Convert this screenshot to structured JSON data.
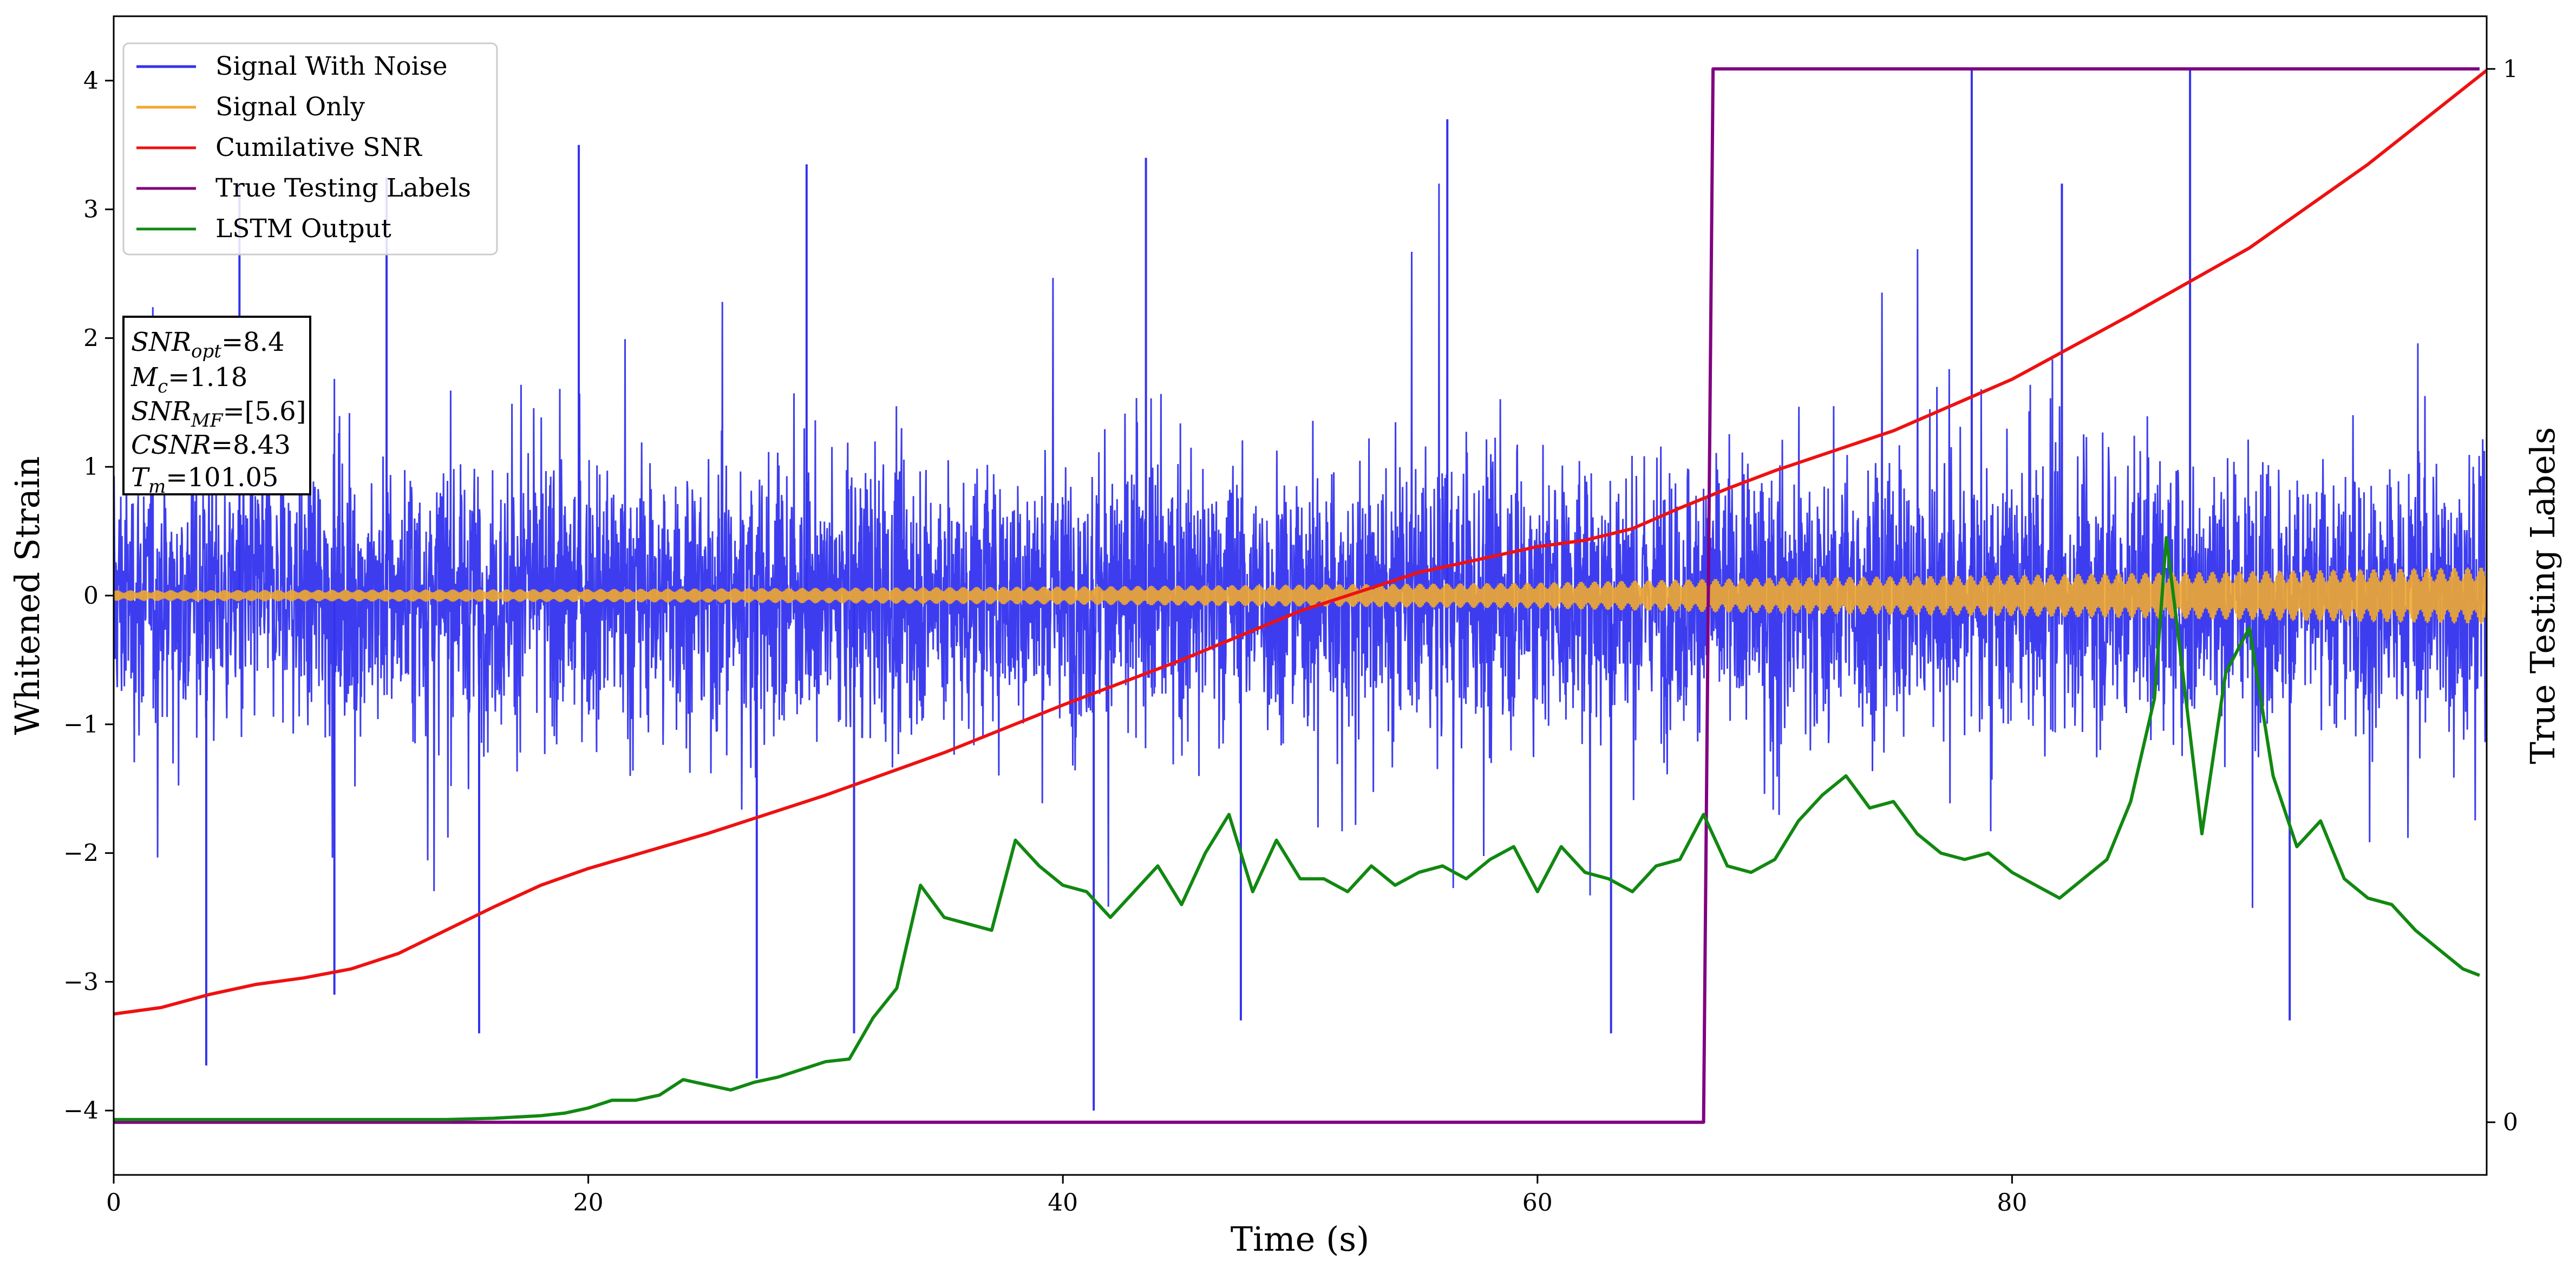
{
  "chart_data": {
    "type": "line",
    "xlabel": "Time (s)",
    "ylabel": "Whitened Strain",
    "y2label": "True Testing Labels",
    "xlim": [
      0,
      100
    ],
    "ylim": [
      -4.5,
      4.5
    ],
    "y2lim": [
      -0.05,
      1.05
    ],
    "x_ticks": [
      0,
      20,
      40,
      60,
      80
    ],
    "x_tick_labels": [
      "0",
      "20",
      "40",
      "60",
      "80"
    ],
    "y_ticks": [
      -4,
      -3,
      -2,
      -1,
      0,
      1,
      2,
      3,
      4
    ],
    "y_tick_labels": [
      "−4",
      "−3",
      "−2",
      "−1",
      "0",
      "1",
      "2",
      "3",
      "4"
    ],
    "y2_ticks": [
      0,
      1
    ],
    "y2_tick_labels": [
      "0",
      "1"
    ],
    "grid": false,
    "legend_position": "upper-left",
    "series": [
      {
        "name": "Signal With Noise",
        "color": "#3333ee",
        "axis": "left",
        "description": "dense noise, typical band about -1.5 to 1.5 with spikes to about ±3.5",
        "spike_times": [
          3.9,
          5.3,
          9.3,
          11.5,
          15.4,
          19.6,
          27.1,
          29.2,
          31.2,
          41.3,
          43.5,
          47.5,
          56.2,
          63.1,
          78.3,
          82.1,
          87.5,
          91.7
        ],
        "spike_values": [
          -3.65,
          3.2,
          -3.1,
          3.25,
          -3.4,
          3.5,
          -3.75,
          3.35,
          -3.4,
          -4.0,
          3.4,
          -3.3,
          3.7,
          -3.4,
          4.1,
          3.2,
          4.1,
          -3.3
        ]
      },
      {
        "name": "Signal Only",
        "color": "#f0a830",
        "axis": "left",
        "description": "oscillating chirp, amplitude about 0.05 growing to about 0.2",
        "amplitude_x": [
          0,
          20,
          40,
          60,
          65,
          70,
          80,
          90,
          100
        ],
        "amplitude_y": [
          0.04,
          0.05,
          0.07,
          0.1,
          0.12,
          0.14,
          0.16,
          0.19,
          0.22
        ]
      },
      {
        "name": "Cumilative SNR",
        "color": "#ee1111",
        "axis": "left",
        "x": [
          0,
          2,
          4,
          6,
          8,
          10,
          12,
          14,
          16,
          18,
          20,
          25,
          30,
          35,
          40,
          45,
          50,
          55,
          60,
          62,
          64,
          66,
          68,
          70,
          75,
          80,
          85,
          90,
          95,
          100
        ],
        "y": [
          -3.25,
          -3.2,
          -3.1,
          -3.02,
          -2.97,
          -2.9,
          -2.78,
          -2.6,
          -2.42,
          -2.25,
          -2.12,
          -1.85,
          -1.55,
          -1.22,
          -0.85,
          -0.5,
          -0.12,
          0.18,
          0.38,
          0.43,
          0.52,
          0.68,
          0.83,
          0.97,
          1.28,
          1.68,
          2.18,
          2.7,
          3.35,
          4.08
        ]
      },
      {
        "name": "True Testing Labels",
        "color": "#800080",
        "axis": "right",
        "x": [
          0,
          67,
          67.4,
          99.7
        ],
        "y": [
          0,
          0,
          1,
          1
        ]
      },
      {
        "name": "LSTM Output",
        "color": "#118811",
        "axis": "left",
        "x": [
          0,
          14,
          16,
          18,
          19,
          20,
          21,
          22,
          23,
          24,
          25,
          26,
          27,
          28,
          29,
          30,
          31,
          32,
          33,
          34,
          35,
          36,
          37,
          38,
          39,
          40,
          41,
          42,
          43,
          44,
          45,
          46,
          47,
          48,
          49,
          50,
          51,
          52,
          53,
          54,
          55,
          56,
          57,
          58,
          59,
          60,
          61,
          62,
          63,
          64,
          65,
          66,
          67,
          68,
          69,
          70,
          71,
          72,
          73,
          74,
          75,
          76,
          77,
          78,
          79,
          80,
          81,
          82,
          83,
          84,
          85,
          86,
          86.5,
          87,
          88,
          89,
          90,
          91,
          92,
          93,
          94,
          95,
          96,
          97,
          98,
          99,
          99.7
        ],
        "y": [
          -4.07,
          -4.07,
          -4.06,
          -4.04,
          -4.02,
          -3.98,
          -3.92,
          -3.92,
          -3.88,
          -3.76,
          -3.8,
          -3.84,
          -3.78,
          -3.74,
          -3.68,
          -3.62,
          -3.6,
          -3.28,
          -3.05,
          -2.25,
          -2.5,
          -2.55,
          -2.6,
          -1.9,
          -2.1,
          -2.25,
          -2.3,
          -2.5,
          -2.3,
          -2.1,
          -2.4,
          -2.0,
          -1.7,
          -2.3,
          -1.9,
          -2.2,
          -2.2,
          -2.3,
          -2.1,
          -2.25,
          -2.15,
          -2.1,
          -2.2,
          -2.05,
          -1.95,
          -2.3,
          -1.95,
          -2.15,
          -2.2,
          -2.3,
          -2.1,
          -2.05,
          -1.7,
          -2.1,
          -2.15,
          -2.05,
          -1.75,
          -1.55,
          -1.4,
          -1.65,
          -1.6,
          -1.85,
          -2.0,
          -2.05,
          -2.0,
          -2.15,
          -2.25,
          -2.35,
          -2.2,
          -2.05,
          -1.6,
          -0.8,
          0.45,
          -0.3,
          -1.85,
          -0.6,
          -0.25,
          -1.4,
          -1.95,
          -1.75,
          -2.2,
          -2.35,
          -2.4,
          -2.6,
          -2.75,
          -2.9,
          -2.95
        ]
      }
    ]
  },
  "legend": [
    {
      "label": "Signal With Noise",
      "color": "#3333ee"
    },
    {
      "label": "Signal Only",
      "color": "#f0a830"
    },
    {
      "label": "Cumilative SNR",
      "color": "#ee1111"
    },
    {
      "label": "True Testing Labels",
      "color": "#800080"
    },
    {
      "label": "LSTM Output",
      "color": "#118811"
    }
  ],
  "info_box": {
    "snr_opt": {
      "var": "SNR",
      "sub": "opt",
      "value": "=8.4"
    },
    "mc": {
      "var": "M",
      "sub": "c",
      "value": "=1.18"
    },
    "snr_mf": {
      "var": "SNR",
      "sub": "MF",
      "value": "=[5.6]"
    },
    "csnr": {
      "var": "CSNR",
      "value": "=8.43"
    },
    "tm": {
      "var": "T",
      "sub": "m",
      "value": "=101.05"
    }
  }
}
